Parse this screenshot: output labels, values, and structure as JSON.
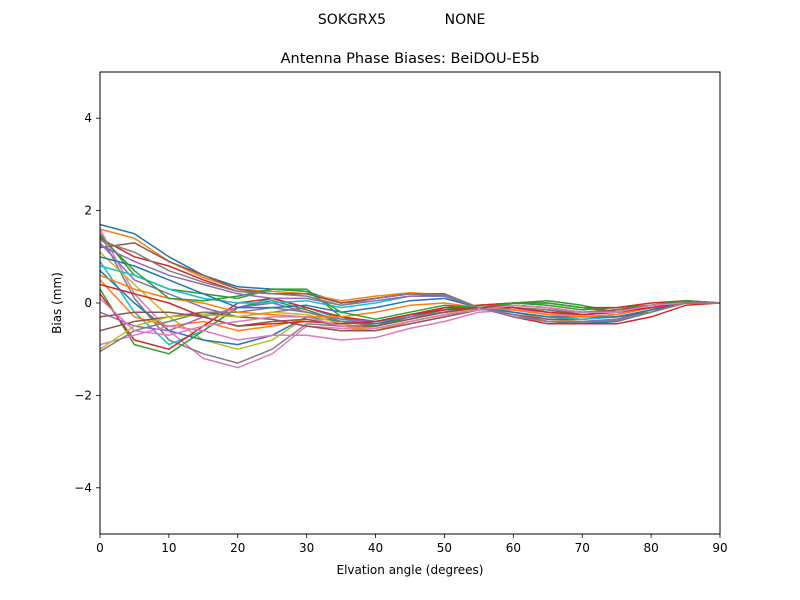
{
  "suptitle": {
    "station": "SOKGRX5",
    "radome": "NONE"
  },
  "chart_data": {
    "type": "line",
    "title": "Antenna Phase Biases: BeiDOU-E5b",
    "xlabel": "Elvation angle (degrees)",
    "ylabel": "Bias (mm)",
    "xlim": [
      0,
      90
    ],
    "ylim": [
      -5,
      5
    ],
    "xticks": [
      0,
      10,
      20,
      30,
      40,
      50,
      60,
      70,
      80,
      90
    ],
    "yticks": [
      -4,
      -2,
      0,
      2,
      4
    ],
    "ytick_labels": [
      "−4",
      "−2",
      "0",
      "2",
      "4"
    ],
    "grid": false,
    "legend": "none",
    "x": [
      0,
      5,
      10,
      15,
      20,
      25,
      30,
      35,
      40,
      45,
      50,
      55,
      60,
      65,
      70,
      75,
      80,
      85,
      90
    ],
    "colors": [
      "#1f77b4",
      "#ff7f0e",
      "#2ca02c",
      "#d62728",
      "#9467bd",
      "#8c564b",
      "#e377c2",
      "#7f7f7f",
      "#bcbd22",
      "#17becf"
    ],
    "series": [
      {
        "values": [
          1.7,
          1.5,
          1.0,
          0.6,
          0.35,
          0.3,
          0.25,
          0.0,
          0.1,
          0.2,
          0.15,
          -0.1,
          -0.25,
          -0.4,
          -0.45,
          -0.4,
          -0.2,
          0.0,
          0.0
        ]
      },
      {
        "values": [
          1.6,
          1.4,
          0.9,
          0.55,
          0.3,
          0.25,
          0.2,
          0.05,
          0.15,
          0.22,
          0.18,
          -0.1,
          -0.2,
          -0.35,
          -0.4,
          -0.35,
          -0.15,
          0.02,
          0.0
        ]
      },
      {
        "values": [
          1.5,
          0.6,
          0.3,
          0.2,
          0.1,
          0.3,
          0.3,
          -0.3,
          -0.5,
          -0.3,
          -0.1,
          -0.15,
          0.0,
          0.05,
          -0.05,
          -0.2,
          -0.05,
          0.05,
          0.0
        ]
      },
      {
        "values": [
          1.4,
          1.0,
          0.8,
          0.5,
          0.25,
          0.2,
          0.2,
          0.0,
          0.1,
          0.2,
          0.15,
          -0.1,
          -0.3,
          -0.45,
          -0.45,
          -0.45,
          -0.3,
          -0.05,
          0.0
        ]
      },
      {
        "values": [
          1.3,
          0.5,
          0.2,
          -0.1,
          -0.3,
          -0.2,
          -0.1,
          -0.3,
          -0.4,
          -0.3,
          -0.1,
          -0.1,
          -0.1,
          -0.2,
          -0.25,
          -0.2,
          -0.1,
          0.0,
          0.0
        ]
      },
      {
        "values": [
          1.2,
          1.3,
          0.9,
          0.6,
          0.3,
          0.2,
          0.2,
          0.0,
          0.1,
          0.2,
          0.2,
          -0.1,
          -0.25,
          -0.35,
          -0.35,
          -0.3,
          -0.2,
          0.05,
          0.0
        ]
      },
      {
        "values": [
          1.6,
          0.2,
          -0.6,
          -1.2,
          -1.4,
          -1.1,
          -0.5,
          -0.55,
          -0.6,
          -0.45,
          -0.3,
          -0.15,
          -0.1,
          -0.2,
          -0.3,
          -0.25,
          -0.1,
          0.0,
          0.0
        ]
      },
      {
        "values": [
          1.5,
          0.1,
          -0.8,
          -1.1,
          -1.3,
          -1.0,
          -0.45,
          -0.5,
          -0.55,
          -0.4,
          -0.25,
          -0.15,
          -0.1,
          -0.15,
          -0.25,
          -0.2,
          -0.1,
          0.0,
          0.0
        ]
      },
      {
        "values": [
          1.1,
          0.4,
          -0.3,
          -0.8,
          -1.0,
          -0.8,
          -0.3,
          -0.4,
          -0.5,
          -0.35,
          -0.2,
          -0.1,
          -0.1,
          -0.2,
          -0.3,
          -0.25,
          -0.1,
          0.0,
          0.0
        ]
      },
      {
        "values": [
          0.9,
          -0.2,
          -0.9,
          -0.6,
          -0.1,
          0.1,
          -0.1,
          -0.35,
          -0.45,
          -0.3,
          -0.15,
          -0.1,
          -0.05,
          -0.1,
          -0.2,
          -0.15,
          -0.05,
          0.0,
          0.0
        ]
      },
      {
        "values": [
          0.7,
          0.0,
          -0.6,
          -0.8,
          -0.9,
          -0.7,
          -0.3,
          -0.4,
          -0.45,
          -0.3,
          -0.2,
          -0.1,
          -0.15,
          -0.25,
          -0.3,
          -0.25,
          -0.1,
          0.0,
          0.0
        ]
      },
      {
        "values": [
          0.5,
          -0.3,
          -0.5,
          -0.4,
          -0.6,
          -0.5,
          -0.35,
          -0.5,
          -0.6,
          -0.4,
          -0.25,
          -0.1,
          -0.05,
          -0.1,
          -0.2,
          -0.2,
          -0.05,
          0.0,
          0.0
        ]
      },
      {
        "values": [
          0.3,
          -0.9,
          -1.1,
          -0.6,
          -0.1,
          0.05,
          -0.15,
          -0.4,
          -0.5,
          -0.3,
          -0.15,
          -0.05,
          0.0,
          -0.05,
          -0.15,
          -0.1,
          -0.05,
          0.05,
          0.0
        ]
      },
      {
        "values": [
          0.2,
          -0.8,
          -1.0,
          -0.5,
          0.0,
          0.1,
          -0.1,
          -0.3,
          -0.4,
          -0.25,
          -0.1,
          -0.05,
          0.0,
          0.0,
          -0.1,
          -0.1,
          0.0,
          0.05,
          0.0
        ]
      },
      {
        "values": [
          -0.2,
          -0.5,
          -0.6,
          -0.3,
          -0.1,
          0.0,
          -0.2,
          -0.35,
          -0.4,
          -0.3,
          -0.2,
          -0.1,
          -0.1,
          -0.15,
          -0.2,
          -0.15,
          -0.05,
          0.0,
          0.0
        ]
      },
      {
        "values": [
          -0.6,
          -0.4,
          -0.3,
          -0.2,
          -0.3,
          -0.35,
          -0.5,
          -0.6,
          -0.6,
          -0.45,
          -0.3,
          -0.15,
          -0.1,
          -0.15,
          -0.25,
          -0.2,
          -0.1,
          0.0,
          0.0
        ]
      },
      {
        "values": [
          -0.9,
          -0.7,
          -0.5,
          -0.6,
          -0.8,
          -0.7,
          -0.7,
          -0.8,
          -0.75,
          -0.55,
          -0.4,
          -0.2,
          -0.15,
          -0.2,
          -0.3,
          -0.25,
          -0.1,
          0.0,
          0.0
        ]
      },
      {
        "values": [
          -1.05,
          -0.6,
          -0.4,
          -0.2,
          -0.2,
          -0.1,
          -0.2,
          -0.4,
          -0.5,
          -0.35,
          -0.2,
          -0.1,
          -0.1,
          -0.15,
          -0.2,
          -0.15,
          -0.05,
          0.0,
          0.0
        ]
      },
      {
        "values": [
          -1.0,
          -0.5,
          -0.3,
          -0.25,
          -0.3,
          -0.2,
          -0.25,
          -0.45,
          -0.55,
          -0.4,
          -0.25,
          -0.1,
          -0.05,
          -0.1,
          -0.2,
          -0.15,
          -0.05,
          0.0,
          0.0
        ]
      },
      {
        "values": [
          0.8,
          0.6,
          0.3,
          0.1,
          0.0,
          0.0,
          0.05,
          -0.1,
          0.0,
          0.15,
          0.15,
          -0.1,
          -0.2,
          -0.3,
          -0.35,
          -0.3,
          -0.15,
          0.0,
          0.0
        ]
      },
      {
        "values": [
          1.0,
          0.8,
          0.5,
          0.2,
          -0.1,
          -0.1,
          -0.05,
          -0.2,
          -0.1,
          0.05,
          0.1,
          -0.1,
          -0.2,
          -0.3,
          -0.3,
          -0.3,
          -0.15,
          0.0,
          0.0
        ]
      },
      {
        "values": [
          0.6,
          0.3,
          0.1,
          0.0,
          -0.2,
          -0.25,
          -0.3,
          -0.3,
          -0.2,
          -0.05,
          0.0,
          -0.1,
          -0.15,
          -0.25,
          -0.3,
          -0.25,
          -0.1,
          0.0,
          0.0
        ]
      },
      {
        "values": [
          1.45,
          0.7,
          0.1,
          0.05,
          0.15,
          0.3,
          0.25,
          -0.2,
          -0.35,
          -0.2,
          -0.05,
          -0.1,
          0.0,
          0.0,
          -0.1,
          -0.2,
          -0.05,
          0.05,
          0.0
        ]
      },
      {
        "values": [
          0.4,
          0.2,
          0.0,
          -0.3,
          -0.5,
          -0.45,
          -0.4,
          -0.45,
          -0.4,
          -0.25,
          -0.15,
          -0.1,
          -0.1,
          -0.2,
          -0.25,
          -0.2,
          -0.1,
          0.0,
          0.0
        ]
      },
      {
        "values": [
          1.25,
          0.9,
          0.6,
          0.4,
          0.2,
          0.1,
          0.1,
          -0.05,
          0.05,
          0.15,
          0.15,
          -0.1,
          -0.25,
          -0.4,
          -0.4,
          -0.35,
          -0.2,
          0.0,
          0.0
        ]
      },
      {
        "values": [
          -0.3,
          -0.2,
          -0.2,
          -0.3,
          -0.5,
          -0.4,
          -0.35,
          -0.5,
          -0.5,
          -0.35,
          -0.2,
          -0.1,
          -0.05,
          -0.1,
          -0.2,
          -0.15,
          -0.05,
          0.0,
          0.0
        ]
      },
      {
        "values": [
          0.1,
          -0.6,
          -0.7,
          -0.5,
          -0.4,
          -0.3,
          -0.3,
          -0.5,
          -0.55,
          -0.4,
          -0.25,
          -0.15,
          -0.05,
          -0.1,
          -0.2,
          -0.2,
          -0.05,
          0.0,
          0.0
        ]
      },
      {
        "values": [
          1.35,
          1.1,
          0.7,
          0.45,
          0.25,
          0.2,
          0.15,
          -0.05,
          0.1,
          0.2,
          0.18,
          -0.1,
          -0.3,
          -0.4,
          -0.42,
          -0.38,
          -0.2,
          0.0,
          0.0
        ]
      }
    ]
  }
}
